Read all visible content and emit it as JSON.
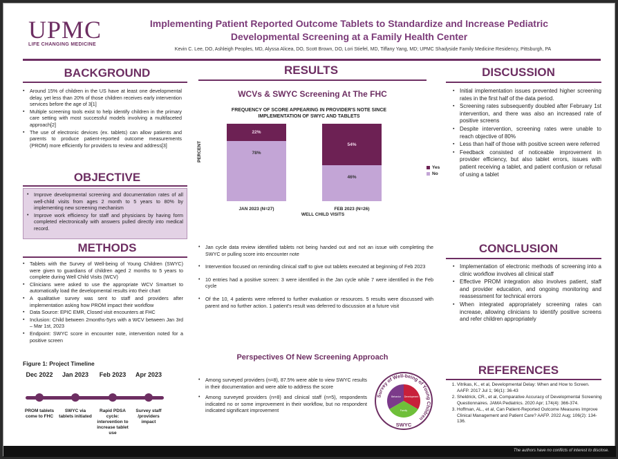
{
  "header": {
    "logo": "UPMC",
    "logo_tagline": "LIFE CHANGING MEDICINE",
    "title": "Implementing Patient Reported Outcome Tablets to Standardize and Increase Pediatric Developmental Screening at a Family Health Center",
    "authors": "Kevin C. Lee, DO, Ashleigh Peoples, MD, Alyssa Alicea, DO, Scott Brown, DO, Lori Stiefel, MD, Tiffany Yang, MD; UPMC Shadyside Family Medicine Residency, Pittsburgh, PA"
  },
  "background": {
    "heading": "BACKGROUND",
    "bullets": [
      "Around 15% of children in the US have at least one developmental delay, yet less than 20% of those children receives early intervention services before the age of 3[1]",
      "Multiple screening tools exist to help identify children in the primary care setting with most successful models involving a multifaceted approach[2]",
      "The use of electronic devices (ex. tablets) can allow patients and parents to produce patient-reported outcome measurements (PROM) more efficiently for providers to review and address[3]"
    ]
  },
  "objective": {
    "heading": "OBJECTIVE",
    "bullets": [
      "Improve developmental screening and documentation rates of all well-child visits from ages 2 month to 5 years to 80% by implementing new screening mechanism",
      "Improve work efficiency for staff and physicians by having form completed electronically with answers pulled directly into medical record."
    ]
  },
  "methods": {
    "heading": "METHODS",
    "bullets": [
      "Tablets with the Survey of Well-being of Young Children (SWYC) were given to guardians of children aged 2 months to 5 years to complete during Well Child Visits (WCV)",
      "Clinicians were asked to use the appropriate WCV Smartset to automatically load the developmental results into their chart",
      "A qualitative survey was sent to staff and providers after implementation asking how PROM impact their workflow",
      "Data Source: EPIC EMR, Closed visit encounters at FHC",
      "Inclusion: Child between 2months-5yrs with a WCV between Jan 3rd – Mar 1st, 2023",
      "Endpoint: SWYC score in encounter note, intervention noted for a positive screen"
    ]
  },
  "timeline": {
    "title": "Figure 1: Project Timeline",
    "items": [
      {
        "date": "Dec 2022",
        "text": "PROM tablets come to FHC"
      },
      {
        "date": "Jan 2023",
        "text": "SWYC via tablets initiated"
      },
      {
        "date": "Feb 2023",
        "text": "Rapid PDSA cycle: intervention to increase tablet use"
      },
      {
        "date": "Apr 2023",
        "text": "Survey staff /providers impact"
      }
    ]
  },
  "results": {
    "heading": "RESULTS",
    "subheading": "WCVs & SWYC Screening At The FHC",
    "bullets": [
      "Jan cycle data review identified tablets not being handed out and not an issue with completing the SWYC or pulling score into encounter note",
      "Intervention focused on reminding clinical staff to give out tablets executed at beginning of Feb 2023",
      "10 entries had a positive screen: 3 were identified in the Jan cycle while 7 were identified in the Feb cycle",
      "Of the 10, 4 patients were referred to further evaluation or resources. 5 results were discussed with parent and no further action. 1 patient's result was deferred to discussion at a future visit"
    ]
  },
  "chart_data": {
    "type": "bar",
    "title": "FREQUENCY OF SCORE APPEARING IN PROVIDER'S NOTE SINCE IMPLEMENTATION OF SWYC AND TABLETS",
    "xlabel": "WELL CHILD VISITS",
    "ylabel": "PERCENT",
    "categories": [
      "JAN 2023 (N=27)",
      "FEB 2023 (N=26)"
    ],
    "stacked": true,
    "series": [
      {
        "name": "No",
        "values": [
          78,
          46
        ],
        "labels": [
          "78%",
          "46%"
        ],
        "color": "#c3a5d6"
      },
      {
        "name": "Yes",
        "values": [
          22,
          54
        ],
        "labels": [
          "22%",
          "54%"
        ],
        "color": "#6d2154"
      }
    ],
    "ylim": [
      0,
      100
    ],
    "legend": "right"
  },
  "perspectives": {
    "heading": "Perspectives Of New Screening Approach",
    "bullets": [
      "Among surveyed providers (n=8), 87.5% were able to view SWYC results in their documentation and were able to address the score",
      "Among surveyed providers (n=8) and clinical staff (n=5), respondents indicated no or some improvement in their workflow, but no respondent indicated significant improvement"
    ],
    "logo_ring_text": "Survey of Well-being of Young Children",
    "logo_center": "SWYC",
    "logo_segments": [
      "Behavior",
      "Development",
      "Family"
    ]
  },
  "discussion": {
    "heading": "DISCUSSION",
    "bullets": [
      "Initial implementation issues prevented higher screening rates in the first half of the data period.",
      "Screening rates subsequently doubled after February 1st intervention, and there was also an increased rate of positive screens",
      "Despite intervention, screening rates were unable to reach objective of 80%",
      "Less than half of those with positive screen were referred",
      "Feedback consisted of noticeable improvement in provider efficiency, but also tablet errors, issues with patient receiving a tablet, and patient confusion or refusal of using a tablet"
    ]
  },
  "conclusion": {
    "heading": "CONCLUSION",
    "bullets": [
      "Implementation of electronic methods of screening into a clinic workflow involves all clinical staff",
      "Effective PROM integration also involves patient, staff and provider education, and ongoing monitoring and reassessment for technical errors",
      "When integrated appropriately screening rates can increase, allowing clinicians to identify positive screens and refer children appropriately"
    ]
  },
  "references": {
    "heading": "REFERENCES",
    "items": [
      "Vitrikas, K., et al, Developmental Delay: When and How to Screen. AAFP. 2017 Jul 1; 96(1): 36-43",
      "Sheldrick, CR., et al, Comparative Accuracy of Developmental Screening Questionnaires. JAMA Pediatrics. 2020 Apr; 174(4): 366-374.",
      "Hoffman, AL., et al, Can Patient-Reported Outcome Measures Improve Clinical Management and Patient Care? AAFP. 2022 Aug; 106(2): 134-136."
    ]
  },
  "footer": {
    "disclosure": "The authors have no conflicts of interest to disclose."
  }
}
